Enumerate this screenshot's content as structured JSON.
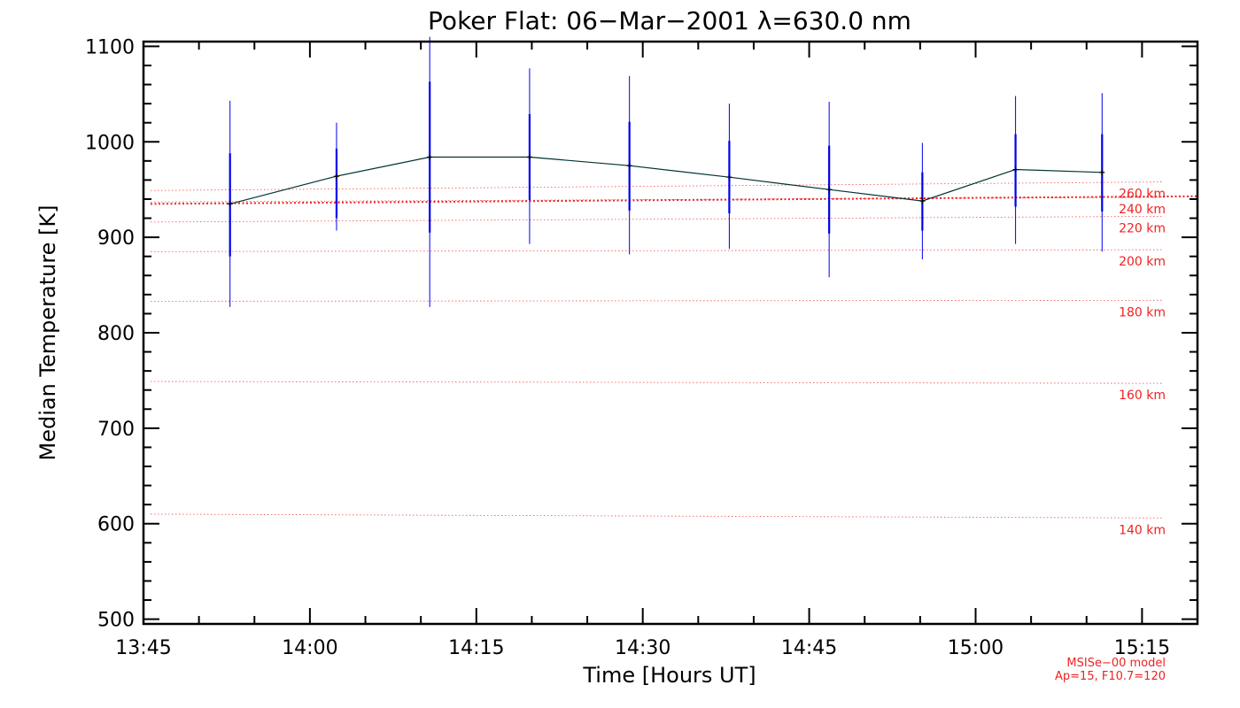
{
  "chart_data": {
    "type": "line",
    "title": "Poker Flat: 06−Mar−2001 λ=630.0 nm",
    "xlabel": "Time [Hours UT]",
    "ylabel": "Median Temperature [K]",
    "xlim": [
      13.75,
      15.3333
    ],
    "ylim": [
      495,
      1105
    ],
    "x_ticks": [
      {
        "value": 13.75,
        "label": "13:45"
      },
      {
        "value": 14.0,
        "label": "14:00"
      },
      {
        "value": 14.25,
        "label": "14:15"
      },
      {
        "value": 14.5,
        "label": "14:30"
      },
      {
        "value": 14.75,
        "label": "14:45"
      },
      {
        "value": 15.0,
        "label": "15:00"
      },
      {
        "value": 15.25,
        "label": "15:15"
      }
    ],
    "y_ticks": [
      {
        "value": 500,
        "label": "500"
      },
      {
        "value": 600,
        "label": "600"
      },
      {
        "value": 700,
        "label": "700"
      },
      {
        "value": 800,
        "label": "800"
      },
      {
        "value": 900,
        "label": "900"
      },
      {
        "value": 1000,
        "label": "1000"
      },
      {
        "value": 1100,
        "label": "1100"
      }
    ],
    "series": [
      {
        "name": "Median temperature",
        "color": "#000000",
        "line_color": "#003333",
        "points": [
          {
            "x": 13.88,
            "y": 935,
            "err_inner": [
              880,
              988
            ],
            "err_outer": [
              827,
              1043
            ]
          },
          {
            "x": 14.04,
            "y": 964,
            "err_inner": [
              920,
              993
            ],
            "err_outer": [
              907,
              1020
            ]
          },
          {
            "x": 14.18,
            "y": 984,
            "err_inner": [
              905,
              1063
            ],
            "err_outer": [
              827,
              1110
            ]
          },
          {
            "x": 14.33,
            "y": 984,
            "err_inner": [
              939,
              1029
            ],
            "err_outer": [
              893,
              1077
            ]
          },
          {
            "x": 14.48,
            "y": 975,
            "err_inner": [
              928,
              1021
            ],
            "err_outer": [
              882,
              1069
            ]
          },
          {
            "x": 14.63,
            "y": 963,
            "err_inner": [
              925,
              1001
            ],
            "err_outer": [
              888,
              1040
            ]
          },
          {
            "x": 14.78,
            "y": 950,
            "err_inner": [
              904,
              996
            ],
            "err_outer": [
              858,
              1042
            ]
          },
          {
            "x": 14.92,
            "y": 938,
            "err_inner": [
              907,
              968
            ],
            "err_outer": [
              877,
              999
            ]
          },
          {
            "x": 15.06,
            "y": 971,
            "err_inner": [
              932,
              1008
            ],
            "err_outer": [
              893,
              1048
            ]
          },
          {
            "x": 15.19,
            "y": 968,
            "err_inner": [
              927,
              1008
            ],
            "err_outer": [
              885,
              1051
            ]
          }
        ]
      }
    ],
    "error_bar_color": "#0000ee",
    "model": {
      "color": "#ee2222",
      "line_630": {
        "name": "630 nm emission",
        "y_start": 935,
        "y_end": 943
      },
      "altitude_lines": [
        {
          "label": "140 km",
          "y_start": 610,
          "y_end": 606
        },
        {
          "label": "160 km",
          "y_start": 749,
          "y_end": 747
        },
        {
          "label": "180 km",
          "y_start": 833,
          "y_end": 834
        },
        {
          "label": "200 km",
          "y_start": 885,
          "y_end": 887
        },
        {
          "label": "220 km",
          "y_start": 916,
          "y_end": 922
        },
        {
          "label": "240 km",
          "y_start": 937,
          "y_end": 942
        },
        {
          "label": "260 km",
          "y_start": 949,
          "y_end": 958
        }
      ],
      "note_line1": "MSISe−00 model",
      "note_line2": "Ap=15, F10.7=120"
    }
  }
}
